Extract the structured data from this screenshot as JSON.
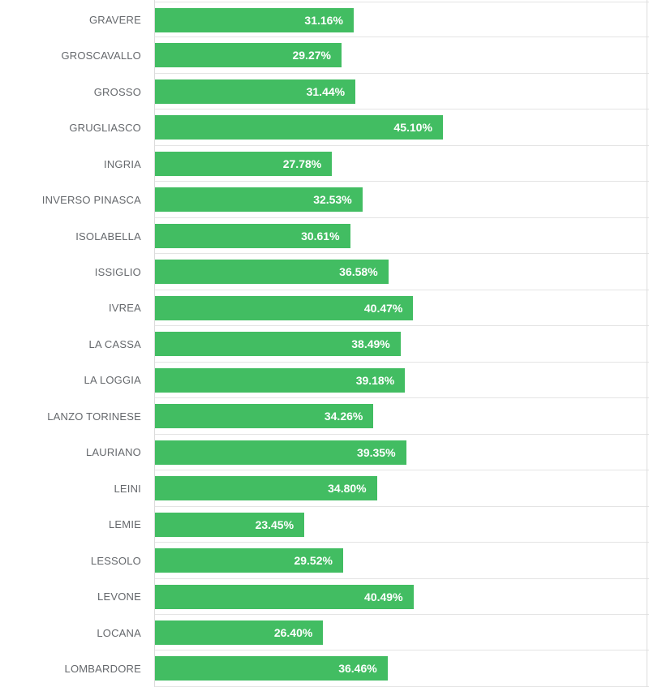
{
  "chart_data": {
    "type": "bar",
    "orientation": "horizontal",
    "title": "",
    "xlabel": "",
    "ylabel": "",
    "categories": [
      "GRAVERE",
      "GROSCAVALLO",
      "GROSSO",
      "GRUGLIASCO",
      "INGRIA",
      "INVERSO PINASCA",
      "ISOLABELLA",
      "ISSIGLIO",
      "IVREA",
      "LA CASSA",
      "LA LOGGIA",
      "LANZO TORINESE",
      "LAURIANO",
      "LEINI",
      "LEMIE",
      "LESSOLO",
      "LEVONE",
      "LOCANA",
      "LOMBARDORE"
    ],
    "values": [
      31.16,
      29.27,
      31.44,
      45.1,
      27.78,
      32.53,
      30.61,
      36.58,
      40.47,
      38.49,
      39.18,
      34.26,
      39.35,
      34.8,
      23.45,
      29.52,
      40.49,
      26.4,
      36.46
    ],
    "value_labels": [
      "31.16%",
      "29.27%",
      "31.44%",
      "45.10%",
      "27.78%",
      "32.53%",
      "30.61%",
      "36.58%",
      "40.47%",
      "38.49%",
      "39.18%",
      "34.26%",
      "39.35%",
      "34.80%",
      "23.45%",
      "29.52%",
      "40.49%",
      "26.40%",
      "36.46%"
    ],
    "xlim_visible": [
      0,
      77.3
    ],
    "grid": "horizontal-row-separators",
    "legend": "none",
    "bar_color": "#42bd62",
    "label_color": "#65686c",
    "value_text_color": "#ffffff",
    "separator_color": "#e4e4e4",
    "axis_line_color": "#dcdcdc"
  }
}
